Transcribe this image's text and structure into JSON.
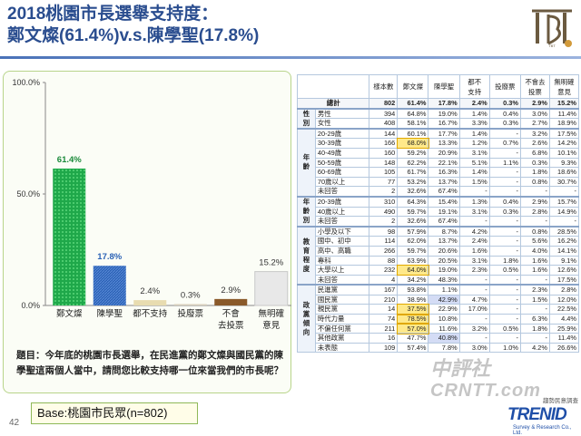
{
  "title": {
    "line1": "2018桃園市長選舉支持度：",
    "line2": "鄭文燦(61.4%)v.s.陳學聖(17.8%)"
  },
  "question": "題目：今年底的桃園市長選舉，在民進黨的鄭文燦與國民黨的陳學聖這兩個人當中，請問您比較支持哪一位來當我們的市長呢？",
  "base": "Base:桃園市民眾(n=802)",
  "page_number": "42",
  "logo_text": "TBT",
  "watermark": {
    "line1": "中評社",
    "line2": "CRNTT.com"
  },
  "footer_logo": {
    "name": "TRENID",
    "top": "趨勢民意調查",
    "sub": "Survey & Research Co., Ltd."
  },
  "colors": {
    "green": "#1fa84a",
    "blue": "#2a62b5",
    "beige": "#e8dcb0",
    "grey_beige": "#d8d0bc",
    "brown": "#8a5a2a",
    "light_grey": "#e8e8e8"
  },
  "chart_data": {
    "type": "bar",
    "categories": [
      "鄭文燦",
      "陳學聖",
      "都不支持",
      "投廢票",
      "不會\n去投票",
      "無明確\n意見"
    ],
    "values": [
      61.4,
      17.8,
      2.4,
      0.3,
      2.9,
      15.2
    ],
    "data_labels": [
      "61.4%",
      "17.8%",
      "2.4%",
      "0.3%",
      "2.9%",
      "15.2%"
    ],
    "yticks": [
      "0.0%",
      "50.0%",
      "100.0%"
    ],
    "ylim": [
      0,
      100
    ],
    "grid": false
  },
  "table": {
    "headers": [
      "樣本數",
      "鄭文燦",
      "陳學聖",
      "都不\n支持",
      "投廢票",
      "不會去\n投票",
      "無明確\n意見"
    ],
    "total": {
      "label": "總計",
      "values": [
        "802",
        "61.4%",
        "17.8%",
        "2.4%",
        "0.3%",
        "2.9%",
        "15.2%"
      ]
    },
    "groups": [
      {
        "label": "性\n別",
        "rows": [
          {
            "label": "男性",
            "values": [
              "394",
              "64.8%",
              "19.0%",
              "1.4%",
              "0.4%",
              "3.0%",
              "11.4%"
            ]
          },
          {
            "label": "女性",
            "values": [
              "408",
              "58.1%",
              "16.7%",
              "3.3%",
              "0.3%",
              "2.7%",
              "18.9%"
            ]
          }
        ]
      },
      {
        "label": "年\n齡",
        "rows": [
          {
            "label": "20-29歲",
            "values": [
              "144",
              "60.1%",
              "17.7%",
              "1.4%",
              "-",
              "3.2%",
              "17.5%"
            ]
          },
          {
            "label": "30-39歲",
            "values": [
              "166",
              "68.0%",
              "13.3%",
              "1.2%",
              "0.7%",
              "2.6%",
              "14.2%"
            ]
          },
          {
            "label": "40-49歲",
            "values": [
              "160",
              "59.2%",
              "20.9%",
              "3.1%",
              "-",
              "6.8%",
              "10.1%"
            ]
          },
          {
            "label": "50-59歲",
            "values": [
              "148",
              "62.2%",
              "22.1%",
              "5.1%",
              "1.1%",
              "0.3%",
              "9.3%"
            ]
          },
          {
            "label": "60-69歲",
            "values": [
              "105",
              "61.7%",
              "16.3%",
              "1.4%",
              "-",
              "1.8%",
              "18.6%"
            ]
          },
          {
            "label": "70歲以上",
            "values": [
              "77",
              "53.2%",
              "13.7%",
              "1.5%",
              "-",
              "0.8%",
              "30.7%"
            ]
          },
          {
            "label": "未回答",
            "values": [
              "2",
              "32.6%",
              "67.4%",
              "-",
              "-",
              "-",
              "-"
            ]
          }
        ]
      },
      {
        "label": "年\n齡\n別",
        "rows": [
          {
            "label": "20-39歲",
            "values": [
              "310",
              "64.3%",
              "15.4%",
              "1.3%",
              "0.4%",
              "2.9%",
              "15.7%"
            ]
          },
          {
            "label": "40歲以上",
            "values": [
              "490",
              "59.7%",
              "19.1%",
              "3.1%",
              "0.3%",
              "2.8%",
              "14.9%"
            ]
          },
          {
            "label": "未回答",
            "values": [
              "2",
              "32.6%",
              "67.4%",
              "-",
              "-",
              "-",
              "-"
            ]
          }
        ]
      },
      {
        "label": "教\n育\n程\n度",
        "rows": [
          {
            "label": "小學及以下",
            "values": [
              "98",
              "57.9%",
              "8.7%",
              "4.2%",
              "-",
              "0.8%",
              "28.5%"
            ]
          },
          {
            "label": "國中、初中",
            "values": [
              "114",
              "62.0%",
              "13.7%",
              "2.4%",
              "-",
              "5.6%",
              "16.2%"
            ]
          },
          {
            "label": "高中、高職",
            "values": [
              "266",
              "59.7%",
              "20.6%",
              "1.6%",
              "-",
              "4.0%",
              "14.1%"
            ]
          },
          {
            "label": "專科",
            "values": [
              "88",
              "63.9%",
              "20.5%",
              "3.1%",
              "1.8%",
              "1.6%",
              "9.1%"
            ]
          },
          {
            "label": "大學以上",
            "values": [
              "232",
              "64.0%",
              "19.0%",
              "2.3%",
              "0.5%",
              "1.6%",
              "12.6%"
            ]
          },
          {
            "label": "未回答",
            "values": [
              "4",
              "34.2%",
              "48.3%",
              "-",
              "-",
              "-",
              "17.5%"
            ]
          }
        ]
      },
      {
        "label": "政\n黨\n傾\n向",
        "rows": [
          {
            "label": "民進黨",
            "values": [
              "167",
              "93.8%",
              "1.1%",
              "-",
              "-",
              "2.3%",
              "2.8%"
            ]
          },
          {
            "label": "國民黨",
            "values": [
              "210",
              "38.9%",
              "42.9%",
              "4.7%",
              "-",
              "1.5%",
              "12.0%"
            ]
          },
          {
            "label": "親民黨",
            "values": [
              "14",
              "37.5%",
              "22.9%",
              "17.0%",
              "-",
              "-",
              "22.5%"
            ]
          },
          {
            "label": "時代力量",
            "values": [
              "74",
              "78.5%",
              "10.8%",
              "-",
              "-",
              "6.3%",
              "4.4%"
            ]
          },
          {
            "label": "不偏任何黨",
            "values": [
              "211",
              "57.0%",
              "11.6%",
              "3.2%",
              "0.5%",
              "1.8%",
              "25.9%"
            ]
          },
          {
            "label": "其他政黨",
            "values": [
              "16",
              "47.7%",
              "40.8%",
              "-",
              "-",
              "-",
              "11.4%"
            ]
          },
          {
            "label": "未表態",
            "values": [
              "109",
              "57.4%",
              "7.8%",
              "3.0%",
              "1.0%",
              "4.2%",
              "26.6%"
            ]
          }
        ]
      }
    ]
  }
}
